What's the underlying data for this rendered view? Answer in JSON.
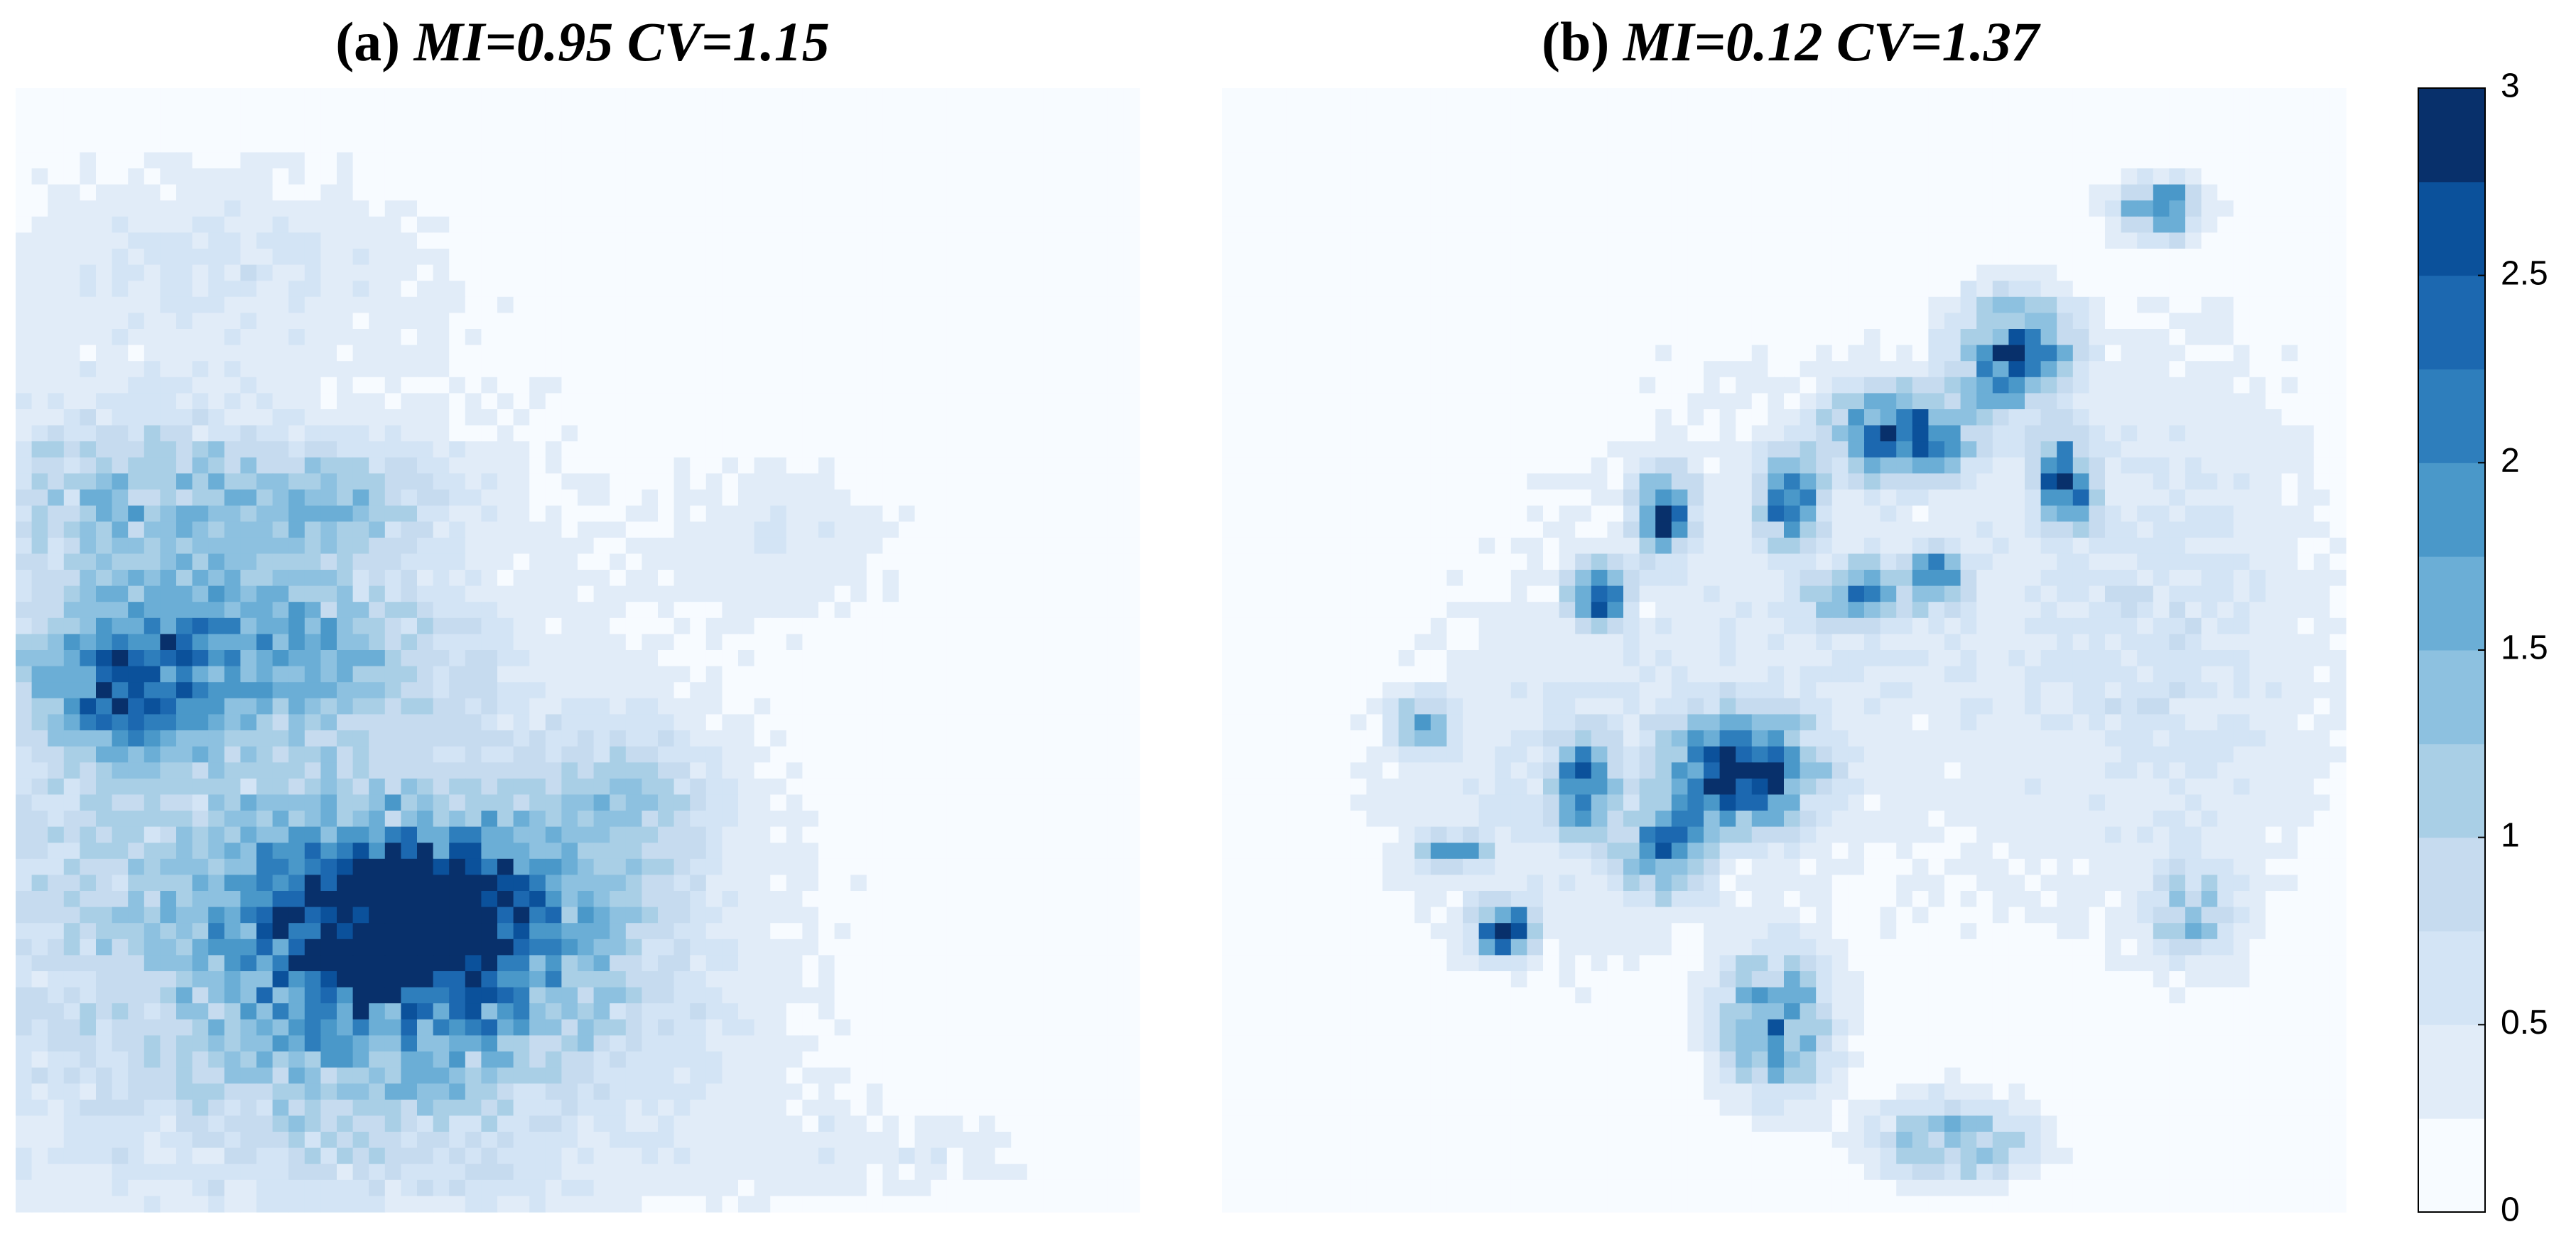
{
  "panels": [
    {
      "prefix": "(a) ",
      "metrics": "MI=0.95 CV=1.15"
    },
    {
      "prefix": "(b) ",
      "metrics": "MI=0.12 CV=1.37"
    }
  ],
  "chart_data": {
    "type": "heatmap",
    "colorbar": {
      "ticks": [
        "0",
        "0.5",
        "1",
        "1.5",
        "2",
        "2.5",
        "3"
      ],
      "range": [
        0,
        3
      ],
      "levels": 12,
      "colors": [
        "#f7fbff",
        "#e1ecf8",
        "#d3e4f5",
        "#c6dbef",
        "#a9cfe6",
        "#8dc1e0",
        "#6baed6",
        "#4a98c9",
        "#2e7ebc",
        "#1c68b0",
        "#0b519b",
        "#08306b"
      ]
    },
    "grid_size": [
      70,
      70
    ],
    "panels": [
      {
        "id": "a",
        "label": "(a) MI=0.95 CV=1.15",
        "background_value": 0.1,
        "blobs": [
          {
            "x": 8,
            "y": 42,
            "rx": 34,
            "ry": 32,
            "value": 0.7
          },
          {
            "x": 24,
            "y": 55,
            "rx": 22,
            "ry": 16,
            "value": 1.1
          },
          {
            "x": 24,
            "y": 52,
            "rx": 12,
            "ry": 7,
            "value": 1.9
          },
          {
            "x": 25,
            "y": 51,
            "rx": 6,
            "ry": 4,
            "value": 2.5
          },
          {
            "x": 14,
            "y": 34,
            "rx": 12,
            "ry": 6,
            "value": 1.2
          },
          {
            "x": 6,
            "y": 37,
            "rx": 6,
            "ry": 5,
            "value": 1.5
          },
          {
            "x": 7,
            "y": 25,
            "rx": 10,
            "ry": 6,
            "value": 0.9
          },
          {
            "x": 20,
            "y": 25,
            "rx": 8,
            "ry": 4,
            "value": 0.9
          },
          {
            "x": 12,
            "y": 10,
            "rx": 14,
            "ry": 6,
            "value": 0.4
          },
          {
            "x": 38,
            "y": 44,
            "rx": 6,
            "ry": 5,
            "value": 0.8
          },
          {
            "x": 55,
            "y": 66,
            "rx": 12,
            "ry": 4,
            "value": 0.35
          },
          {
            "x": 48,
            "y": 28,
            "rx": 8,
            "ry": 6,
            "value": 0.35
          }
        ]
      },
      {
        "id": "b",
        "label": "(b) MI=0.12 CV=1.37",
        "background_value": 0.05,
        "blobs": [
          {
            "x": 40,
            "y": 33,
            "rx": 30,
            "ry": 24,
            "value": 0.45
          },
          {
            "x": 20,
            "y": 45,
            "rx": 14,
            "ry": 12,
            "value": 0.4
          },
          {
            "x": 60,
            "y": 35,
            "rx": 10,
            "ry": 24,
            "value": 0.4
          },
          {
            "x": 42,
            "y": 21,
            "rx": 5,
            "ry": 3,
            "value": 2.5
          },
          {
            "x": 49,
            "y": 16,
            "rx": 4,
            "ry": 4,
            "value": 2.3
          },
          {
            "x": 32,
            "y": 42,
            "rx": 5,
            "ry": 4,
            "value": 2.7
          },
          {
            "x": 23,
            "y": 31,
            "rx": 2,
            "ry": 2,
            "value": 2.8
          },
          {
            "x": 35,
            "y": 25,
            "rx": 2,
            "ry": 3,
            "value": 2.6
          },
          {
            "x": 27,
            "y": 26,
            "rx": 2,
            "ry": 3,
            "value": 2.3
          },
          {
            "x": 39,
            "y": 31,
            "rx": 3,
            "ry": 2,
            "value": 2.1
          },
          {
            "x": 44,
            "y": 30,
            "rx": 2,
            "ry": 2,
            "value": 1.9
          },
          {
            "x": 52,
            "y": 24,
            "rx": 2,
            "ry": 3,
            "value": 2.6
          },
          {
            "x": 22,
            "y": 43,
            "rx": 2,
            "ry": 3,
            "value": 2.2
          },
          {
            "x": 27,
            "y": 47,
            "rx": 3,
            "ry": 3,
            "value": 1.9
          },
          {
            "x": 14,
            "y": 47,
            "rx": 2,
            "ry": 1,
            "value": 2.6
          },
          {
            "x": 17,
            "y": 52,
            "rx": 2,
            "ry": 2,
            "value": 2.7
          },
          {
            "x": 34,
            "y": 58,
            "rx": 4,
            "ry": 5,
            "value": 2.0
          },
          {
            "x": 45,
            "y": 65,
            "rx": 6,
            "ry": 3,
            "value": 1.6
          },
          {
            "x": 60,
            "y": 51,
            "rx": 3,
            "ry": 3,
            "value": 1.1
          },
          {
            "x": 58,
            "y": 7,
            "rx": 3,
            "ry": 2,
            "value": 2.2
          },
          {
            "x": 12,
            "y": 39,
            "rx": 2,
            "ry": 2,
            "value": 1.6
          }
        ]
      }
    ]
  }
}
